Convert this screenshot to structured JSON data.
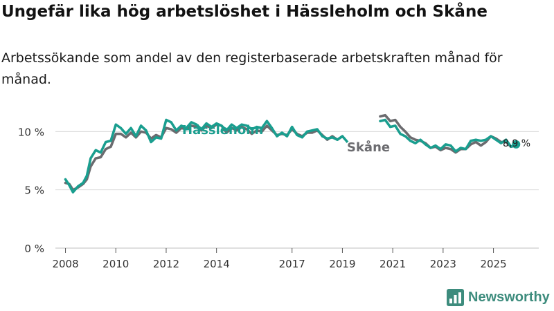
{
  "title": "Ungefär lika hög arbetslöshet i Hässleholm och Skåne",
  "subtitle": "Arbetssökande som andel av den registerbaserade arbetskraften månad för månad.",
  "brand": "Newsworthy",
  "colors": {
    "hassleholm": "#1a9e8f",
    "skane": "#6b6b6f",
    "grid": "#d9d9d9",
    "brand": "#3d8c7d"
  },
  "chart_data": {
    "type": "line",
    "x_label": "",
    "y_label": "",
    "x_range": [
      2007.6,
      2026.8
    ],
    "y_range": [
      0,
      11.8
    ],
    "y_ticks": [
      0,
      5,
      10
    ],
    "y_tick_labels": [
      "0 %",
      "5 %",
      "10 %"
    ],
    "x_ticks": [
      2008,
      2010,
      2012,
      2014,
      2017,
      2019,
      2021,
      2023,
      2025
    ],
    "x_tick_labels": [
      "2008",
      "2010",
      "2012",
      "2014",
      "2017",
      "2019",
      "2021",
      "2023",
      "2025"
    ],
    "end_label": "8,9 %",
    "series": [
      {
        "name": "Hässleholm",
        "label": "Hässleholm",
        "color": "#1a9e8f",
        "points": [
          [
            2008.0,
            5.9
          ],
          [
            2008.15,
            5.4
          ],
          [
            2008.3,
            4.8
          ],
          [
            2008.5,
            5.3
          ],
          [
            2008.7,
            5.6
          ],
          [
            2008.85,
            6.2
          ],
          [
            2009.0,
            7.7
          ],
          [
            2009.2,
            8.4
          ],
          [
            2009.4,
            8.2
          ],
          [
            2009.6,
            9.1
          ],
          [
            2009.8,
            9.2
          ],
          [
            2010.0,
            10.6
          ],
          [
            2010.2,
            10.3
          ],
          [
            2010.4,
            9.8
          ],
          [
            2010.6,
            10.3
          ],
          [
            2010.8,
            9.6
          ],
          [
            2011.0,
            10.5
          ],
          [
            2011.2,
            10.1
          ],
          [
            2011.4,
            9.1
          ],
          [
            2011.6,
            9.5
          ],
          [
            2011.8,
            9.4
          ],
          [
            2012.0,
            11.0
          ],
          [
            2012.2,
            10.8
          ],
          [
            2012.4,
            10.1
          ],
          [
            2012.6,
            10.5
          ],
          [
            2012.8,
            10.3
          ],
          [
            2013.0,
            10.8
          ],
          [
            2013.2,
            10.6
          ],
          [
            2013.4,
            10.2
          ],
          [
            2013.6,
            10.7
          ],
          [
            2013.8,
            10.4
          ],
          [
            2014.0,
            10.7
          ],
          [
            2014.2,
            10.5
          ],
          [
            2014.4,
            10.1
          ],
          [
            2014.6,
            10.6
          ],
          [
            2014.8,
            10.3
          ],
          [
            2015.0,
            10.6
          ],
          [
            2015.2,
            10.5
          ],
          [
            2015.4,
            10.2
          ],
          [
            2015.6,
            10.4
          ],
          [
            2015.8,
            10.3
          ],
          [
            2016.0,
            10.9
          ],
          [
            2016.2,
            10.3
          ],
          [
            2016.4,
            9.6
          ],
          [
            2016.6,
            9.9
          ],
          [
            2016.8,
            9.6
          ],
          [
            2017.0,
            10.4
          ],
          [
            2017.2,
            9.7
          ],
          [
            2017.4,
            9.5
          ],
          [
            2017.6,
            10.0
          ],
          [
            2017.8,
            10.1
          ],
          [
            2018.0,
            10.2
          ],
          [
            2018.2,
            9.6
          ],
          [
            2018.4,
            9.4
          ],
          [
            2018.6,
            9.5
          ],
          [
            2018.8,
            9.3
          ],
          [
            2019.0,
            9.6
          ],
          [
            2019.2,
            9.1
          ],
          [
            2019.4,
            8.6
          ],
          [
            2019.6,
            8.9
          ]
        ],
        "points_segment_2": [
          [
            2020.5,
            10.9
          ],
          [
            2020.7,
            11.0
          ],
          [
            2020.9,
            10.4
          ],
          [
            2021.1,
            10.5
          ],
          [
            2021.3,
            9.8
          ],
          [
            2021.5,
            9.6
          ],
          [
            2021.7,
            9.2
          ],
          [
            2021.9,
            9.0
          ],
          [
            2022.1,
            9.3
          ],
          [
            2022.3,
            8.9
          ],
          [
            2022.5,
            8.6
          ],
          [
            2022.7,
            8.8
          ],
          [
            2022.9,
            8.5
          ],
          [
            2023.1,
            8.9
          ],
          [
            2023.3,
            8.8
          ],
          [
            2023.5,
            8.3
          ],
          [
            2023.7,
            8.6
          ],
          [
            2023.9,
            8.5
          ],
          [
            2024.1,
            9.2
          ],
          [
            2024.3,
            9.3
          ],
          [
            2024.5,
            9.2
          ],
          [
            2024.7,
            9.3
          ],
          [
            2024.9,
            9.6
          ],
          [
            2025.1,
            9.3
          ],
          [
            2025.3,
            9.0
          ],
          [
            2025.5,
            9.3
          ],
          [
            2025.7,
            8.7
          ],
          [
            2025.9,
            8.9
          ]
        ]
      },
      {
        "name": "Skåne",
        "label": "Skåne",
        "color": "#6b6b6f",
        "points": [
          [
            2008.0,
            5.6
          ],
          [
            2008.15,
            5.5
          ],
          [
            2008.3,
            5.0
          ],
          [
            2008.5,
            5.2
          ],
          [
            2008.7,
            5.5
          ],
          [
            2008.85,
            5.9
          ],
          [
            2009.0,
            7.0
          ],
          [
            2009.2,
            7.7
          ],
          [
            2009.4,
            7.8
          ],
          [
            2009.6,
            8.5
          ],
          [
            2009.8,
            8.7
          ],
          [
            2010.0,
            9.8
          ],
          [
            2010.2,
            9.8
          ],
          [
            2010.4,
            9.5
          ],
          [
            2010.6,
            9.9
          ],
          [
            2010.8,
            9.5
          ],
          [
            2011.0,
            10.0
          ],
          [
            2011.2,
            9.9
          ],
          [
            2011.4,
            9.4
          ],
          [
            2011.6,
            9.7
          ],
          [
            2011.8,
            9.5
          ],
          [
            2012.0,
            10.3
          ],
          [
            2012.2,
            10.2
          ],
          [
            2012.4,
            9.9
          ],
          [
            2012.6,
            10.3
          ],
          [
            2012.8,
            10.2
          ],
          [
            2013.0,
            10.5
          ],
          [
            2013.2,
            10.4
          ],
          [
            2013.4,
            10.1
          ],
          [
            2013.6,
            10.5
          ],
          [
            2013.8,
            10.3
          ],
          [
            2014.0,
            10.6
          ],
          [
            2014.2,
            10.5
          ],
          [
            2014.4,
            9.9
          ],
          [
            2014.6,
            10.3
          ],
          [
            2014.8,
            10.1
          ],
          [
            2015.0,
            10.4
          ],
          [
            2015.2,
            10.2
          ],
          [
            2015.4,
            9.8
          ],
          [
            2015.6,
            10.1
          ],
          [
            2015.8,
            10.0
          ],
          [
            2016.0,
            10.5
          ],
          [
            2016.2,
            10.1
          ],
          [
            2016.4,
            9.7
          ],
          [
            2016.6,
            9.8
          ],
          [
            2016.8,
            9.7
          ],
          [
            2017.0,
            10.2
          ],
          [
            2017.2,
            9.8
          ],
          [
            2017.4,
            9.6
          ],
          [
            2017.6,
            9.9
          ],
          [
            2017.8,
            9.9
          ],
          [
            2018.0,
            10.1
          ],
          [
            2018.2,
            9.7
          ],
          [
            2018.4,
            9.3
          ],
          [
            2018.6,
            9.6
          ],
          [
            2018.8,
            9.3
          ],
          [
            2019.0,
            9.6
          ]
        ],
        "points_segment_2": [
          [
            2020.5,
            11.3
          ],
          [
            2020.7,
            11.4
          ],
          [
            2020.9,
            10.9
          ],
          [
            2021.1,
            11.0
          ],
          [
            2021.3,
            10.4
          ],
          [
            2021.5,
            10.0
          ],
          [
            2021.7,
            9.5
          ],
          [
            2021.9,
            9.3
          ],
          [
            2022.1,
            9.2
          ],
          [
            2022.3,
            9.0
          ],
          [
            2022.5,
            8.6
          ],
          [
            2022.7,
            8.7
          ],
          [
            2022.9,
            8.4
          ],
          [
            2023.1,
            8.6
          ],
          [
            2023.3,
            8.5
          ],
          [
            2023.5,
            8.2
          ],
          [
            2023.7,
            8.5
          ],
          [
            2023.9,
            8.5
          ],
          [
            2024.1,
            8.9
          ],
          [
            2024.3,
            9.1
          ],
          [
            2024.5,
            8.8
          ],
          [
            2024.7,
            9.1
          ],
          [
            2024.9,
            9.6
          ],
          [
            2025.1,
            9.4
          ],
          [
            2025.3,
            9.1
          ],
          [
            2025.5,
            9.1
          ],
          [
            2025.7,
            8.7
          ],
          [
            2025.9,
            8.8
          ]
        ]
      }
    ]
  }
}
